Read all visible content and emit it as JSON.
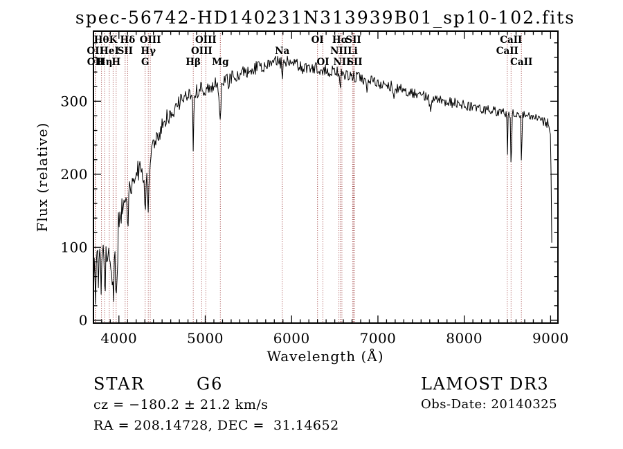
{
  "title": "spec-56742-HD140231N313939B01_sp10-102.fits",
  "footer": {
    "object_type": "STAR",
    "subclass": "G6",
    "cz_line": "cz = −180.2 ± 21.2 km/s",
    "radec_line": "RA = 208.14728, DEC =  31.14652",
    "survey_release": "LAMOST DR3",
    "obs_date_line": "Obs-Date: 20140325"
  },
  "chart_data": {
    "type": "line",
    "title": "spec-56742-HD140231N313939B01_sp10-102.fits",
    "xlabel": "Wavelength (Å)",
    "ylabel": "Flux (relative)",
    "xlim": [
      3705,
      9085
    ],
    "ylim": [
      -3.8,
      396
    ],
    "x_ticks": [
      4000,
      5000,
      6000,
      7000,
      8000,
      9000
    ],
    "y_ticks": [
      0,
      100,
      200,
      300
    ],
    "x_minor_step": 100,
    "y_minor_step": 20,
    "grid": false,
    "legend": false,
    "line_color": "#000000",
    "frame_color": "#000000",
    "marker_line_color": "#993333",
    "seed": 20140325,
    "spectral_lines": [
      {
        "label": "OII",
        "wavelength": 3727,
        "row": 1
      },
      {
        "label": "OII",
        "wavelength": 3729,
        "row": 2
      },
      {
        "label": "Hθ",
        "wavelength": 3798,
        "row": 0
      },
      {
        "label": "Hη",
        "wavelength": 3835,
        "row": 2
      },
      {
        "label": "HeI",
        "wavelength": 3889,
        "row": 1
      },
      {
        "label": "K",
        "wavelength": 3933,
        "row": 0
      },
      {
        "label": "H",
        "wavelength": 3968,
        "row": 2
      },
      {
        "label": "SII",
        "wavelength": 4072,
        "row": 1
      },
      {
        "label": "Hδ",
        "wavelength": 4101,
        "row": 0
      },
      {
        "label": "G",
        "wavelength": 4304,
        "row": 2
      },
      {
        "label": "Hγ",
        "wavelength": 4340,
        "row": 1
      },
      {
        "label": "OIII",
        "wavelength": 4363,
        "row": 0
      },
      {
        "label": "Hβ",
        "wavelength": 4861,
        "row": 2
      },
      {
        "label": "OIII",
        "wavelength": 4959,
        "row": 1
      },
      {
        "label": "OIII",
        "wavelength": 5007,
        "row": 0
      },
      {
        "label": "Mg",
        "wavelength": 5175,
        "row": 2
      },
      {
        "label": "Na",
        "wavelength": 5892,
        "row": 1
      },
      {
        "label": "OI",
        "wavelength": 6300,
        "row": 0
      },
      {
        "label": "OI",
        "wavelength": 6363,
        "row": 2
      },
      {
        "label": "NII",
        "wavelength": 6548,
        "row": 1
      },
      {
        "label": "Hα",
        "wavelength": 6563,
        "row": 0
      },
      {
        "label": "NII",
        "wavelength": 6583,
        "row": 2
      },
      {
        "label": "Li",
        "wavelength": 6707,
        "row": 1
      },
      {
        "label": "SII",
        "wavelength": 6716,
        "row": 0
      },
      {
        "label": "SII",
        "wavelength": 6731,
        "row": 2
      },
      {
        "label": "CaII",
        "wavelength": 8498,
        "row": 1
      },
      {
        "label": "CaII",
        "wavelength": 8542,
        "row": 0
      },
      {
        "label": "CaII",
        "wavelength": 8662,
        "row": 2
      }
    ],
    "envelope_points": [
      [
        3700,
        55
      ],
      [
        3750,
        75
      ],
      [
        3800,
        80
      ],
      [
        3850,
        85
      ],
      [
        3900,
        92
      ],
      [
        3935,
        72
      ],
      [
        3970,
        85
      ],
      [
        4000,
        125
      ],
      [
        4050,
        160
      ],
      [
        4100,
        172
      ],
      [
        4160,
        195
      ],
      [
        4220,
        205
      ],
      [
        4270,
        200
      ],
      [
        4320,
        198
      ],
      [
        4380,
        230
      ],
      [
        4450,
        252
      ],
      [
        4550,
        275
      ],
      [
        4650,
        292
      ],
      [
        4750,
        305
      ],
      [
        4850,
        313
      ],
      [
        4950,
        316
      ],
      [
        5050,
        320
      ],
      [
        5200,
        327
      ],
      [
        5350,
        335
      ],
      [
        5500,
        342
      ],
      [
        5650,
        348
      ],
      [
        5800,
        353
      ],
      [
        5950,
        354
      ],
      [
        6100,
        350
      ],
      [
        6250,
        346
      ],
      [
        6400,
        342
      ],
      [
        6550,
        339
      ],
      [
        6700,
        334
      ],
      [
        6850,
        330
      ],
      [
        7000,
        325
      ],
      [
        7150,
        320
      ],
      [
        7300,
        315
      ],
      [
        7450,
        310
      ],
      [
        7600,
        305
      ],
      [
        7750,
        301
      ],
      [
        7900,
        297
      ],
      [
        8050,
        293
      ],
      [
        8200,
        289
      ],
      [
        8350,
        286
      ],
      [
        8500,
        284
      ],
      [
        8650,
        282
      ],
      [
        8800,
        278
      ],
      [
        8920,
        274
      ],
      [
        8975,
        268
      ],
      [
        9000,
        252
      ],
      [
        9008,
        180
      ],
      [
        9015,
        95
      ],
      [
        9020,
        12
      ]
    ],
    "absorption_features": [
      [
        3728,
        4,
        40
      ],
      [
        3795,
        3,
        55
      ],
      [
        3838,
        3,
        40
      ],
      [
        3890,
        4,
        35
      ],
      [
        3935,
        6,
        68
      ],
      [
        3970,
        5,
        72
      ],
      [
        4102,
        7,
        42
      ],
      [
        4227,
        4,
        22
      ],
      [
        4305,
        9,
        48
      ],
      [
        4341,
        7,
        58
      ],
      [
        4862,
        6,
        76
      ],
      [
        5172,
        8,
        62
      ],
      [
        5270,
        5,
        18
      ],
      [
        5893,
        4,
        26
      ],
      [
        6122,
        4,
        12
      ],
      [
        6564,
        4,
        34
      ],
      [
        6872,
        7,
        12
      ],
      [
        7190,
        8,
        9
      ],
      [
        7607,
        9,
        15
      ],
      [
        8500,
        4,
        54
      ],
      [
        8544,
        4,
        99
      ],
      [
        8664,
        4,
        88
      ]
    ],
    "noise_profile": [
      [
        3700,
        32
      ],
      [
        4000,
        18
      ],
      [
        4250,
        13
      ],
      [
        4600,
        11
      ],
      [
        5200,
        9
      ],
      [
        6200,
        8
      ],
      [
        7300,
        7
      ],
      [
        8400,
        6
      ],
      [
        8900,
        8
      ]
    ]
  }
}
